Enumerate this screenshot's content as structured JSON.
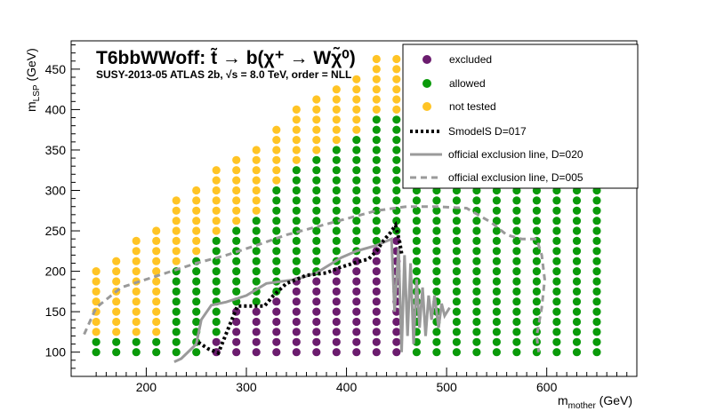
{
  "chart_data": {
    "type": "scatter",
    "title": "T6bbWWoff: t̃ → b(χ⁺ → Wχ̃⁰)",
    "subtitle": "SUSY-2013-05  ATLAS 2b, √s =  8.0 TeV, order = NLL",
    "xlabel": "m_mother (GeV)",
    "ylabel": "m_LSP (GeV)",
    "xlim": [
      125,
      690
    ],
    "ylim": [
      70,
      485
    ],
    "xticks": [
      200,
      300,
      400,
      500,
      600
    ],
    "yticks": [
      100,
      150,
      200,
      250,
      300,
      350,
      400,
      450
    ],
    "grid": false,
    "legend_position": "top-right",
    "colors": {
      "excluded": "#6b1c6e",
      "allowed": "#0a9a0a",
      "not_tested": "#ffc425",
      "smodels_line": "#000000",
      "official_line": "#9a9a9a"
    },
    "legend": [
      {
        "label": "excluded",
        "kind": "marker",
        "color": "#6b1c6e"
      },
      {
        "label": "allowed",
        "kind": "marker",
        "color": "#0a9a0a"
      },
      {
        "label": "not tested",
        "kind": "marker",
        "color": "#ffc425"
      },
      {
        "label": "SmodelS D=017",
        "kind": "dotted",
        "color": "#000000"
      },
      {
        "label": " official exclusion line, D=020",
        "kind": "solid",
        "color": "#9a9a9a"
      },
      {
        "label": " official exclusion line, D=005",
        "kind": "dashed",
        "color": "#9a9a9a"
      }
    ],
    "grid_points": {
      "x_start": 150,
      "x_step": 20,
      "x_end": 650,
      "y_start": 100,
      "y_step": 12.5,
      "columns": [
        {
          "x": 150,
          "max_y": 200,
          "excluded": [],
          "allowed_max": 112.5
        },
        {
          "x": 170,
          "max_y": 212.5,
          "excluded": [],
          "allowed_max": 112.5
        },
        {
          "x": 190,
          "max_y": 237.5,
          "excluded": [],
          "allowed_max": 112.5
        },
        {
          "x": 210,
          "max_y": 250,
          "excluded": [],
          "allowed_max": 112.5
        },
        {
          "x": 230,
          "max_y": 287.5,
          "excluded": [],
          "allowed_max": 200
        },
        {
          "x": 250,
          "max_y": 300,
          "excluded": [],
          "allowed_max": 212.5
        },
        {
          "x": 270,
          "max_y": 325,
          "excluded": [
            [
              100,
              112.5
            ]
          ],
          "allowed_max": 237.5
        },
        {
          "x": 290,
          "max_y": 337.5,
          "excluded": [
            [
              100,
              150
            ]
          ],
          "allowed_max": 250
        },
        {
          "x": 310,
          "max_y": 350,
          "excluded": [
            [
              100,
              150
            ]
          ],
          "allowed_max": 262.5
        },
        {
          "x": 330,
          "max_y": 375,
          "excluded": [
            [
              100,
              162.5
            ]
          ],
          "allowed_max": 300
        },
        {
          "x": 350,
          "max_y": 400,
          "excluded": [
            [
              100,
              187.5
            ]
          ],
          "allowed_max": 325
        },
        {
          "x": 370,
          "max_y": 412.5,
          "excluded": [
            [
              100,
              187.5
            ]
          ],
          "allowed_max": 337.5
        },
        {
          "x": 390,
          "max_y": 425,
          "excluded": [
            [
              100,
              200
            ]
          ],
          "allowed_max": 350
        },
        {
          "x": 410,
          "max_y": 437.5,
          "excluded": [
            [
              100,
              212.5
            ]
          ],
          "allowed_max": 362.5
        },
        {
          "x": 430,
          "max_y": 462.5,
          "excluded": [
            [
              100,
              225
            ]
          ],
          "allowed_max": 387.5
        },
        {
          "x": 450,
          "max_y": 462.5,
          "excluded": [
            [
              100,
              237.5
            ]
          ],
          "allowed_max": 387.5
        },
        {
          "x": 470,
          "max_y": 462.5,
          "excluded": [],
          "allowed_max": 462.5
        },
        {
          "x": 490,
          "max_y": 462.5,
          "excluded": [],
          "allowed_max": 462.5
        },
        {
          "x": 510,
          "max_y": 462.5,
          "excluded": [],
          "allowed_max": 462.5
        },
        {
          "x": 530,
          "max_y": 450,
          "excluded": [],
          "allowed_max": 450
        },
        {
          "x": 550,
          "max_y": 437.5,
          "excluded": [],
          "allowed_max": 425
        },
        {
          "x": 570,
          "max_y": 412.5,
          "excluded": [],
          "allowed_max": 400
        },
        {
          "x": 590,
          "max_y": 387.5,
          "excluded": [],
          "allowed_max": 375
        },
        {
          "x": 610,
          "max_y": 362.5,
          "excluded": [],
          "allowed_max": 350
        },
        {
          "x": 630,
          "max_y": 337.5,
          "excluded": [],
          "allowed_max": 325
        },
        {
          "x": 650,
          "max_y": 325,
          "excluded": [],
          "allowed_max": 312.5
        }
      ]
    },
    "smodels_line": [
      [
        252,
        112
      ],
      [
        262,
        104
      ],
      [
        272,
        99
      ],
      [
        291,
        157
      ],
      [
        300,
        157
      ],
      [
        312,
        157
      ],
      [
        318,
        157
      ],
      [
        327,
        170
      ],
      [
        340,
        185
      ],
      [
        360,
        195
      ],
      [
        380,
        198
      ],
      [
        392,
        204
      ],
      [
        402,
        208
      ],
      [
        412,
        212
      ],
      [
        422,
        215
      ],
      [
        430,
        225
      ],
      [
        437,
        238
      ],
      [
        444,
        248
      ],
      [
        449,
        257
      ],
      [
        453,
        237
      ],
      [
        455,
        222
      ]
    ],
    "official_line_020": [
      [
        228,
        88
      ],
      [
        235,
        92
      ],
      [
        250,
        110
      ],
      [
        255,
        140
      ],
      [
        265,
        158
      ],
      [
        280,
        162
      ],
      [
        300,
        170
      ],
      [
        320,
        185
      ],
      [
        350,
        190
      ],
      [
        370,
        198
      ],
      [
        395,
        217
      ],
      [
        410,
        225
      ],
      [
        430,
        232
      ],
      [
        445,
        240
      ],
      [
        448,
        150
      ],
      [
        452,
        230
      ],
      [
        455,
        100
      ],
      [
        458,
        220
      ],
      [
        461,
        120
      ],
      [
        464,
        210
      ],
      [
        467,
        110
      ],
      [
        470,
        190
      ],
      [
        473,
        130
      ],
      [
        476,
        180
      ],
      [
        479,
        120
      ],
      [
        482,
        170
      ],
      [
        485,
        140
      ],
      [
        488,
        170
      ],
      [
        492,
        130
      ],
      [
        495,
        160
      ],
      [
        498,
        145
      ],
      [
        503,
        155
      ]
    ],
    "official_line_005": [
      [
        138,
        122
      ],
      [
        150,
        155
      ],
      [
        175,
        180
      ],
      [
        200,
        190
      ],
      [
        225,
        200
      ],
      [
        250,
        210
      ],
      [
        280,
        220
      ],
      [
        310,
        232
      ],
      [
        340,
        245
      ],
      [
        370,
        255
      ],
      [
        400,
        265
      ],
      [
        430,
        275
      ],
      [
        460,
        280
      ],
      [
        490,
        280
      ],
      [
        520,
        278
      ],
      [
        545,
        260
      ],
      [
        560,
        245
      ],
      [
        575,
        240
      ],
      [
        590,
        240
      ],
      [
        595,
        220
      ],
      [
        598,
        190
      ],
      [
        595,
        155
      ],
      [
        590,
        120
      ],
      [
        592,
        100
      ]
    ]
  }
}
